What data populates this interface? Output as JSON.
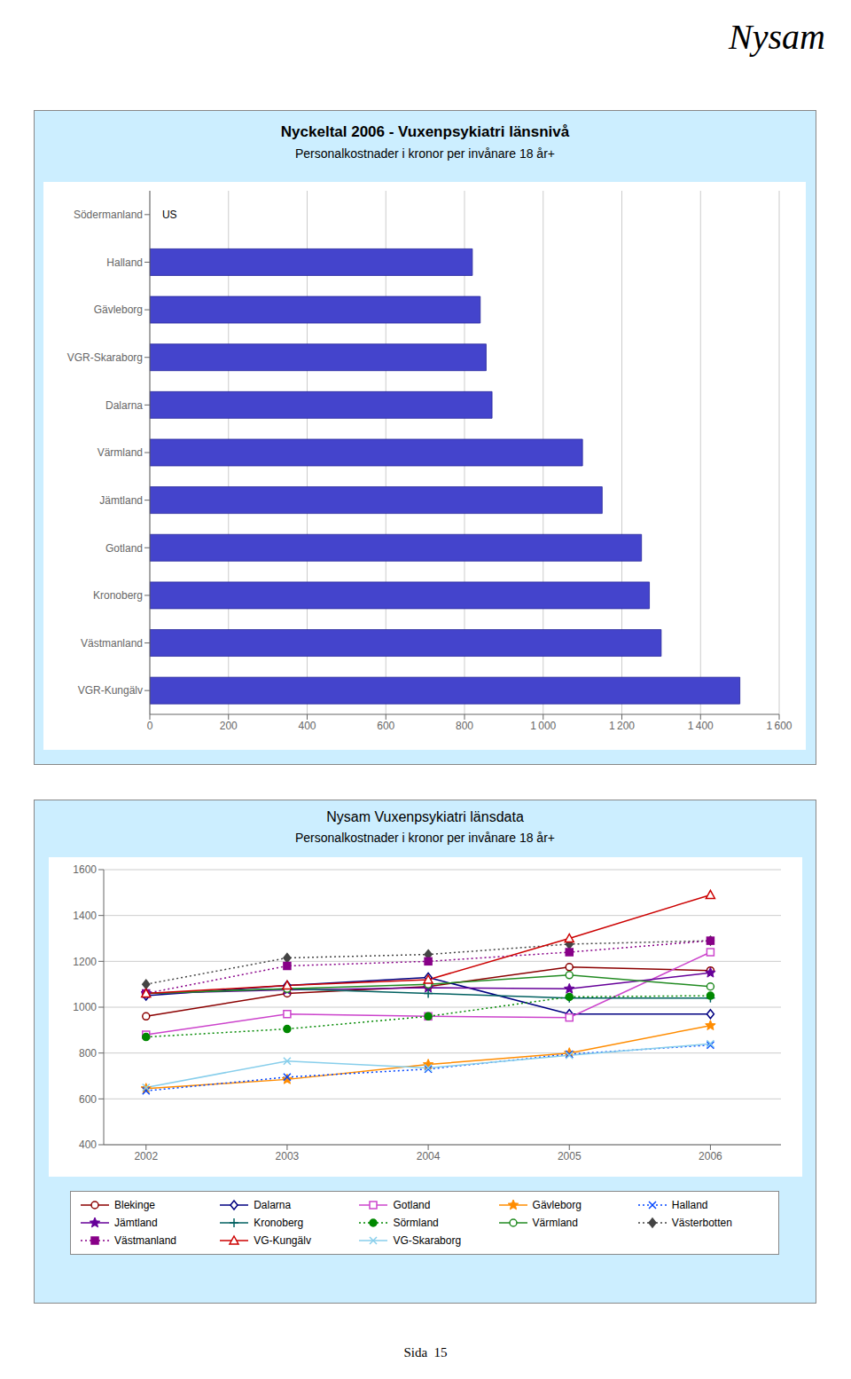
{
  "annotations": [
    "Nysam",
    "Sida  15"
  ],
  "chart_data": [
    {
      "type": "bar",
      "orientation": "horizontal",
      "title": "Nyckeltal 2006  -  Vuxenpsykiatri länsnivå",
      "subtitle": "Personalkostnader i kronor per invånare 18 år+",
      "categories": [
        "VGR-Kungälv",
        "Västmanland",
        "Kronoberg",
        "Gotland",
        "Jämtland",
        "Värmland",
        "Dalarna",
        "VGR-Skaraborg",
        "Gävleborg",
        "Halland",
        "Södermanland"
      ],
      "values": [
        1500,
        1300,
        1270,
        1250,
        1150,
        1100,
        870,
        855,
        840,
        820,
        0
      ],
      "color": "#4444cc",
      "xlim": [
        0,
        1600
      ],
      "xticks": [
        0,
        200,
        400,
        600,
        800,
        {
          "value": 1000,
          "label": "1 000"
        },
        {
          "value": 1200,
          "label": "1 200"
        },
        {
          "value": 1400,
          "label": "1 400"
        },
        {
          "value": 1600,
          "label": "1 600"
        }
      ],
      "grid": true,
      "annotations": [
        {
          "text": "US",
          "x": 20,
          "y": "Södermanland"
        }
      ]
    },
    {
      "type": "line",
      "title": "Nysam Vuxenpsykiatri länsdata",
      "subtitle": "Personalkostnader i kronor per invånare 18 år+",
      "x": [
        2002,
        2003,
        2004,
        2005,
        2006
      ],
      "xlim": [
        2001.7,
        2006.5
      ],
      "xticks": [
        2002,
        2003,
        2004,
        2005,
        2006
      ],
      "ylim": [
        400,
        1600
      ],
      "yticks": [
        400,
        600,
        800,
        1000,
        1200,
        1400,
        1600
      ],
      "grid": true,
      "legend": "bottom",
      "series": [
        {
          "name": "Blekinge",
          "values": [
            960,
            1060,
            1090,
            1175,
            1160
          ],
          "color": "#8B0000",
          "line_style": "solid",
          "marker": "circle-open"
        },
        {
          "name": "Dalarna",
          "values": [
            1050,
            1095,
            1130,
            970,
            970
          ],
          "color": "#000080",
          "line_style": "solid",
          "marker": "diamond-open"
        },
        {
          "name": "Gotland",
          "values": [
            880,
            970,
            960,
            955,
            1240
          ],
          "color": "#cc44cc",
          "line_style": "solid",
          "marker": "square-open"
        },
        {
          "name": "Gävleborg",
          "values": [
            645,
            685,
            750,
            800,
            920
          ],
          "color": "#FF8C00",
          "line_style": "solid",
          "marker": "star"
        },
        {
          "name": "Halland",
          "values": [
            635,
            695,
            730,
            795,
            835
          ],
          "color": "#0044FF",
          "line_style": "dotted",
          "marker": "x"
        },
        {
          "name": "Jämtland",
          "values": [
            1060,
            1075,
            1085,
            1080,
            1150
          ],
          "color": "#660099",
          "line_style": "solid",
          "marker": "star"
        },
        {
          "name": "Kronoberg",
          "values": [
            1060,
            1080,
            1060,
            1040,
            1040
          ],
          "color": "#006060",
          "line_style": "solid",
          "marker": "plus"
        },
        {
          "name": "Sörmland",
          "values": [
            870,
            905,
            960,
            1045,
            1050
          ],
          "color": "#008800",
          "line_style": "dotted",
          "marker": "circle"
        },
        {
          "name": "Värmland",
          "values": [
            1060,
            1080,
            1100,
            1140,
            1090
          ],
          "color": "#228B22",
          "line_style": "solid",
          "marker": "circle-open"
        },
        {
          "name": "Västerbotten",
          "values": [
            1100,
            1215,
            1230,
            1275,
            1290
          ],
          "color": "#444444",
          "line_style": "dotted",
          "marker": "diamond"
        },
        {
          "name": "Västmanland",
          "values": [
            1060,
            1180,
            1200,
            1240,
            1290
          ],
          "color": "#880088",
          "line_style": "dotted",
          "marker": "square"
        },
        {
          "name": "VG-Kungälv",
          "values": [
            1060,
            1095,
            1120,
            1300,
            1490
          ],
          "color": "#cc0000",
          "line_style": "solid",
          "marker": "triangle-open"
        },
        {
          "name": "VG-Skaraborg",
          "values": [
            650,
            765,
            735,
            790,
            840
          ],
          "color": "#87CEEB",
          "line_style": "solid",
          "marker": "x"
        }
      ]
    }
  ]
}
